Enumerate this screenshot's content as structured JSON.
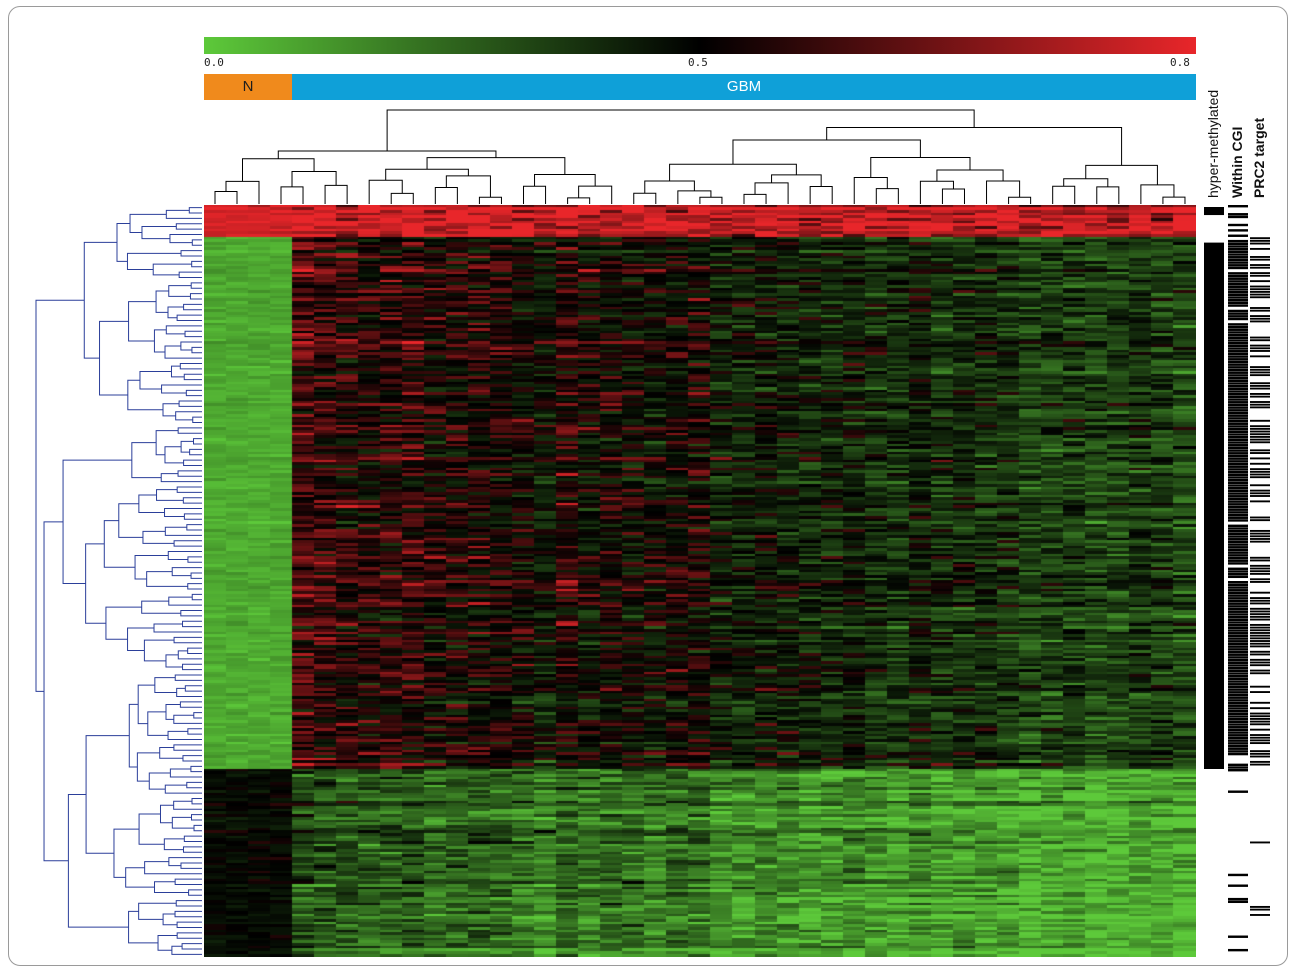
{
  "chart_data": {
    "type": "heatmap",
    "title": "",
    "colorscale": {
      "low_color": "#5dc93a",
      "mid_color": "#000000",
      "high_color": "#e8262a",
      "ticks": [
        "0.0",
        "0.5",
        "0.8"
      ],
      "vmin": 0.0,
      "vmid": 0.5,
      "vmax": 0.8
    },
    "groups": [
      {
        "name": "N",
        "columns": 4,
        "color": "#f08a1c"
      },
      {
        "name": "GBM",
        "columns": 41,
        "color": "#0fa0d8"
      }
    ],
    "n_columns": 45,
    "n_rows": 280,
    "row_blocks": [
      {
        "name": "top",
        "rows": 12,
        "normal_mean": 0.78,
        "gbm_mean": 0.76
      },
      {
        "name": "hypermethylated",
        "rows": 198,
        "normal_mean": 0.08,
        "gbm_mean": 0.45
      },
      {
        "name": "bottom",
        "rows": 70,
        "normal_mean": 0.48,
        "gbm_mean": 0.18
      }
    ],
    "annotation_tracks": [
      "hyper-methylated",
      "Within CGI",
      "PRC2 target"
    ],
    "dendrogram_color_rows": "#2b3f9a",
    "dendrogram_color_columns": "#000000",
    "colors": {
      "frame": "#9a9a9a",
      "normal": "#f08a1c",
      "gbm": "#0fa0d8"
    }
  }
}
